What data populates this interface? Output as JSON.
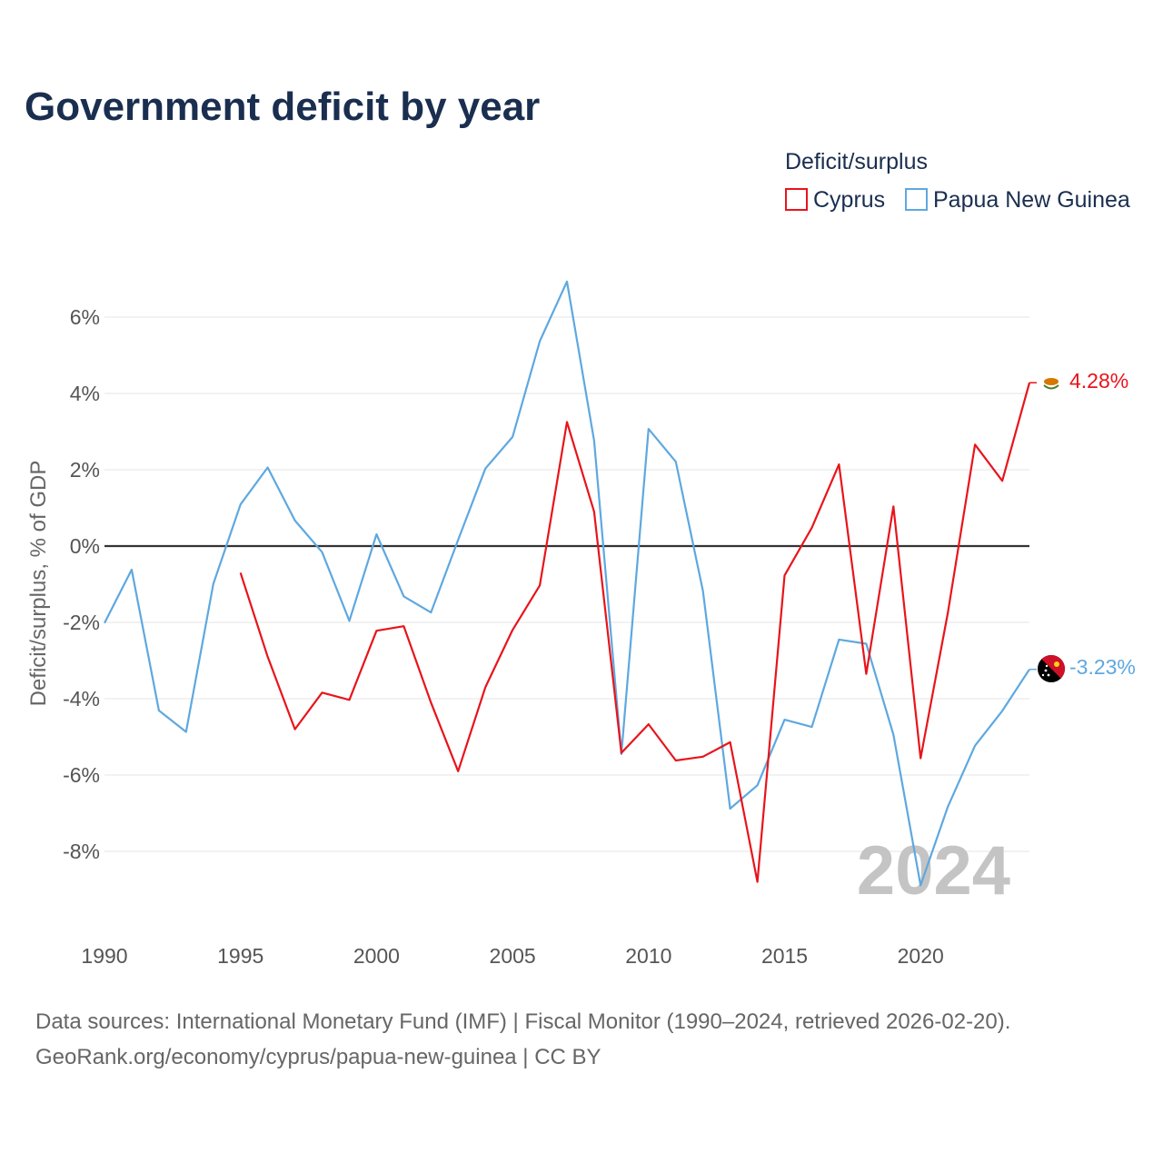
{
  "chart_data": {
    "type": "line",
    "title": "Government deficit by year",
    "ylabel": "Deficit/surplus, % of GDP",
    "xlabel": "",
    "xlim": [
      1990,
      2024
    ],
    "ylim": [
      -10,
      7.2
    ],
    "y_ticks": [
      6,
      4,
      2,
      0,
      -2,
      -4,
      -6,
      -8
    ],
    "y_tick_labels": [
      "6%",
      "4%",
      "2%",
      "0%",
      "-2%",
      "-4%",
      "-6%",
      "-8%"
    ],
    "x_ticks": [
      1990,
      1995,
      2000,
      2005,
      2010,
      2015,
      2020
    ],
    "x_tick_labels": [
      "1990",
      "1995",
      "2000",
      "2005",
      "2010",
      "2015",
      "2020"
    ],
    "legend_title": "Deficit/surplus",
    "legend_position": "top-right",
    "year_watermark": "2024",
    "series": [
      {
        "name": "Cyprus",
        "color": "#e8141b",
        "end_label": "4.28%",
        "x": [
          1995,
          1996,
          1997,
          1998,
          1999,
          2000,
          2001,
          2002,
          2003,
          2004,
          2005,
          2006,
          2007,
          2008,
          2009,
          2010,
          2011,
          2012,
          2013,
          2014,
          2015,
          2016,
          2017,
          2018,
          2019,
          2020,
          2021,
          2022,
          2023,
          2024
        ],
        "values": [
          -0.7,
          -2.9,
          -4.8,
          -3.84,
          -4.03,
          -2.22,
          -2.1,
          -4.1,
          -5.9,
          -3.7,
          -2.2,
          -1.03,
          3.25,
          0.9,
          -5.42,
          -4.67,
          -5.62,
          -5.52,
          -5.14,
          -8.8,
          -0.77,
          0.48,
          2.14,
          -3.35,
          1.04,
          -5.56,
          -1.75,
          2.66,
          1.71,
          4.28
        ]
      },
      {
        "name": "Papua New Guinea",
        "color": "#5ea8e0",
        "end_label": "-3.23%",
        "x": [
          1990,
          1991,
          1992,
          1993,
          1994,
          1995,
          1996,
          1997,
          1998,
          1999,
          2000,
          2001,
          2002,
          2003,
          2004,
          2005,
          2006,
          2007,
          2008,
          2009,
          2010,
          2011,
          2012,
          2013,
          2014,
          2015,
          2016,
          2017,
          2018,
          2019,
          2020,
          2021,
          2022,
          2023,
          2024
        ],
        "values": [
          -2.02,
          -0.62,
          -4.31,
          -4.87,
          -0.99,
          1.09,
          2.06,
          0.67,
          -0.16,
          -1.96,
          0.31,
          -1.32,
          -1.74,
          0.16,
          2.03,
          2.86,
          5.37,
          6.93,
          2.76,
          -5.45,
          3.07,
          2.21,
          -1.18,
          -6.88,
          -6.27,
          -4.55,
          -4.74,
          -2.45,
          -2.56,
          -4.94,
          -8.89,
          -6.83,
          -5.23,
          -4.32,
          -3.23
        ]
      }
    ]
  },
  "footer": {
    "source_line1": "Data sources: International Monetary Fund (IMF) | Fiscal Monitor (1990–2024, retrieved 2026-02-20).",
    "source_line2": "GeoRank.org/economy/cyprus/papua-new-guinea | CC BY"
  },
  "colors": {
    "title": "#1a2e4f",
    "grid": "#e6e6e6",
    "zero_line": "#333333",
    "watermark": "#c4c4c4"
  }
}
